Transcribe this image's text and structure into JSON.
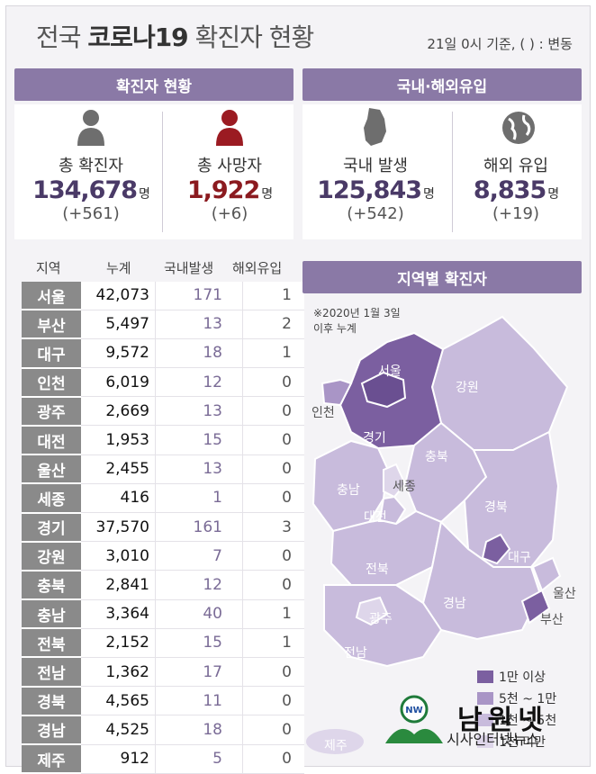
{
  "title_light_1": "전국 ",
  "title_bold": "코로나19",
  "title_light_2": " 확진자 현황",
  "subtitle": "21일 0시 기준, ( ) : 변동",
  "headers": {
    "confirmed": "확진자 현황",
    "origin": "국내·해외유입",
    "map": "지역별 확진자"
  },
  "stats": {
    "total": {
      "label": "총 확진자",
      "value": "134,678",
      "unit": "명",
      "change": "(+561)",
      "icon": "person-icon"
    },
    "deaths": {
      "label": "총 사망자",
      "value": "1,922",
      "unit": "명",
      "change": "(+6)",
      "icon": "person-red-icon"
    },
    "domestic": {
      "label": "국내 발생",
      "value": "125,843",
      "unit": "명",
      "change": "(+542)",
      "icon": "korea-map-icon"
    },
    "overseas": {
      "label": "해외 유입",
      "value": "8,835",
      "unit": "명",
      "change": "(+19)",
      "icon": "globe-icon"
    }
  },
  "table": {
    "columns": [
      "지역",
      "누계",
      "국내발생",
      "해외유입"
    ],
    "rows": [
      [
        "서울",
        "42,073",
        "171",
        "1"
      ],
      [
        "부산",
        "5,497",
        "13",
        "2"
      ],
      [
        "대구",
        "9,572",
        "18",
        "1"
      ],
      [
        "인천",
        "6,019",
        "12",
        "0"
      ],
      [
        "광주",
        "2,669",
        "13",
        "0"
      ],
      [
        "대전",
        "1,953",
        "15",
        "0"
      ],
      [
        "울산",
        "2,455",
        "13",
        "0"
      ],
      [
        "세종",
        "416",
        "1",
        "0"
      ],
      [
        "경기",
        "37,570",
        "161",
        "3"
      ],
      [
        "강원",
        "3,010",
        "7",
        "0"
      ],
      [
        "충북",
        "2,841",
        "12",
        "0"
      ],
      [
        "충남",
        "3,364",
        "40",
        "1"
      ],
      [
        "전북",
        "2,152",
        "15",
        "1"
      ],
      [
        "전남",
        "1,362",
        "17",
        "0"
      ],
      [
        "경북",
        "4,565",
        "11",
        "0"
      ],
      [
        "경남",
        "4,525",
        "18",
        "0"
      ],
      [
        "제주",
        "912",
        "5",
        "0"
      ]
    ]
  },
  "map": {
    "note_1": "※2020년 1월 3일",
    "note_2": "이후 누계",
    "regions": {
      "seoul": "서울",
      "incheon": "인천",
      "gyeonggi": "경기",
      "gangwon": "강원",
      "chungbuk": "충북",
      "sejong": "세종",
      "chungnam": "충남",
      "daejeon": "대전",
      "gyeongbuk": "경북",
      "daegu": "대구",
      "jeonbuk": "전북",
      "ulsan": "울산",
      "busan": "부산",
      "gyeongnam": "경남",
      "gwangju": "광주",
      "jeonnam": "전남",
      "jeju": "제주"
    },
    "colors": {
      "high": "#7b5fa0",
      "mid": "#a995c6",
      "low": "#c8bbdc",
      "lowest": "#ded6ea"
    },
    "legend": [
      "1만 이상",
      "5천 ~ 1만",
      "1천 ~ 5천",
      "1천 미만"
    ]
  },
  "brand": {
    "name": "남원넷",
    "sub": "시사인터넷뉴스"
  }
}
